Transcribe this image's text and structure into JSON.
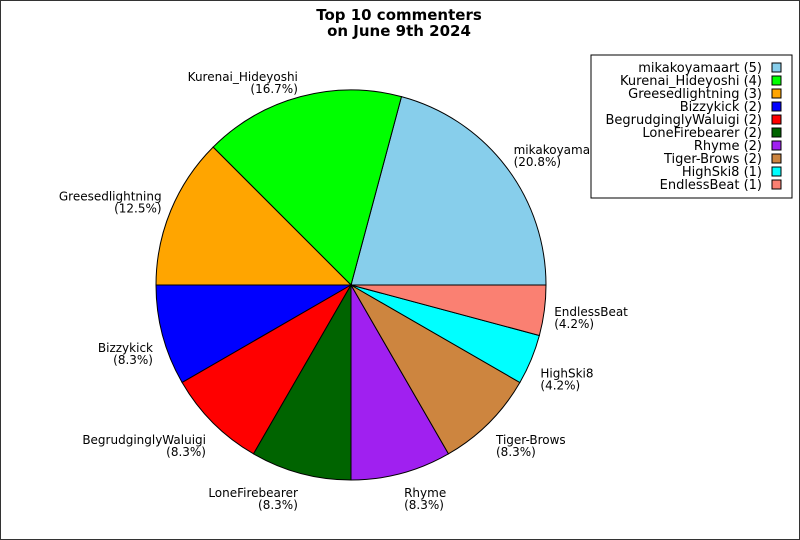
{
  "chart_data": {
    "type": "pie",
    "title": "Top 10 commenters",
    "subtitle": "on June 9th 2024",
    "slices": [
      {
        "label": "mikakoyamaart",
        "value": 5,
        "percent": "20.8%",
        "color": "#87ceeb",
        "legend_text": "mikakoyamaart (5)"
      },
      {
        "label": "Kurenai_Hideyoshi",
        "value": 4,
        "percent": "16.7%",
        "color": "#00ff00",
        "legend_text": "Kurenai_Hideyoshi (4)"
      },
      {
        "label": "Greesedlightning",
        "value": 3,
        "percent": "12.5%",
        "color": "#ffa500",
        "legend_text": "Greesedlightning (3)"
      },
      {
        "label": "Bizzykick",
        "value": 2,
        "percent": "8.3%",
        "color": "#0000ff",
        "legend_text": "Bizzykick (2)"
      },
      {
        "label": "BegrudginglyWaluigi",
        "value": 2,
        "percent": "8.3%",
        "color": "#ff0000",
        "legend_text": "BegrudginglyWaluigi (2)"
      },
      {
        "label": "LoneFirebearer",
        "value": 2,
        "percent": "8.3%",
        "color": "#006400",
        "legend_text": "LoneFirebearer (2)"
      },
      {
        "label": "Rhyme",
        "value": 2,
        "percent": "8.3%",
        "color": "#a020f0",
        "legend_text": "Rhyme (2)"
      },
      {
        "label": "Tiger-Brows",
        "value": 2,
        "percent": "8.3%",
        "color": "#cd853f",
        "legend_text": "Tiger-Brows (2)"
      },
      {
        "label": "HighSki8",
        "value": 1,
        "percent": "4.2%",
        "color": "#00ffff",
        "legend_text": "HighSki8 (1)"
      },
      {
        "label": "EndlessBeat",
        "value": 1,
        "percent": "4.2%",
        "color": "#fa8072",
        "legend_text": "EndlessBeat (1)"
      }
    ],
    "legend_position": "top-right",
    "start_angle": "3 o'clock",
    "direction": "counter-clockwise"
  }
}
